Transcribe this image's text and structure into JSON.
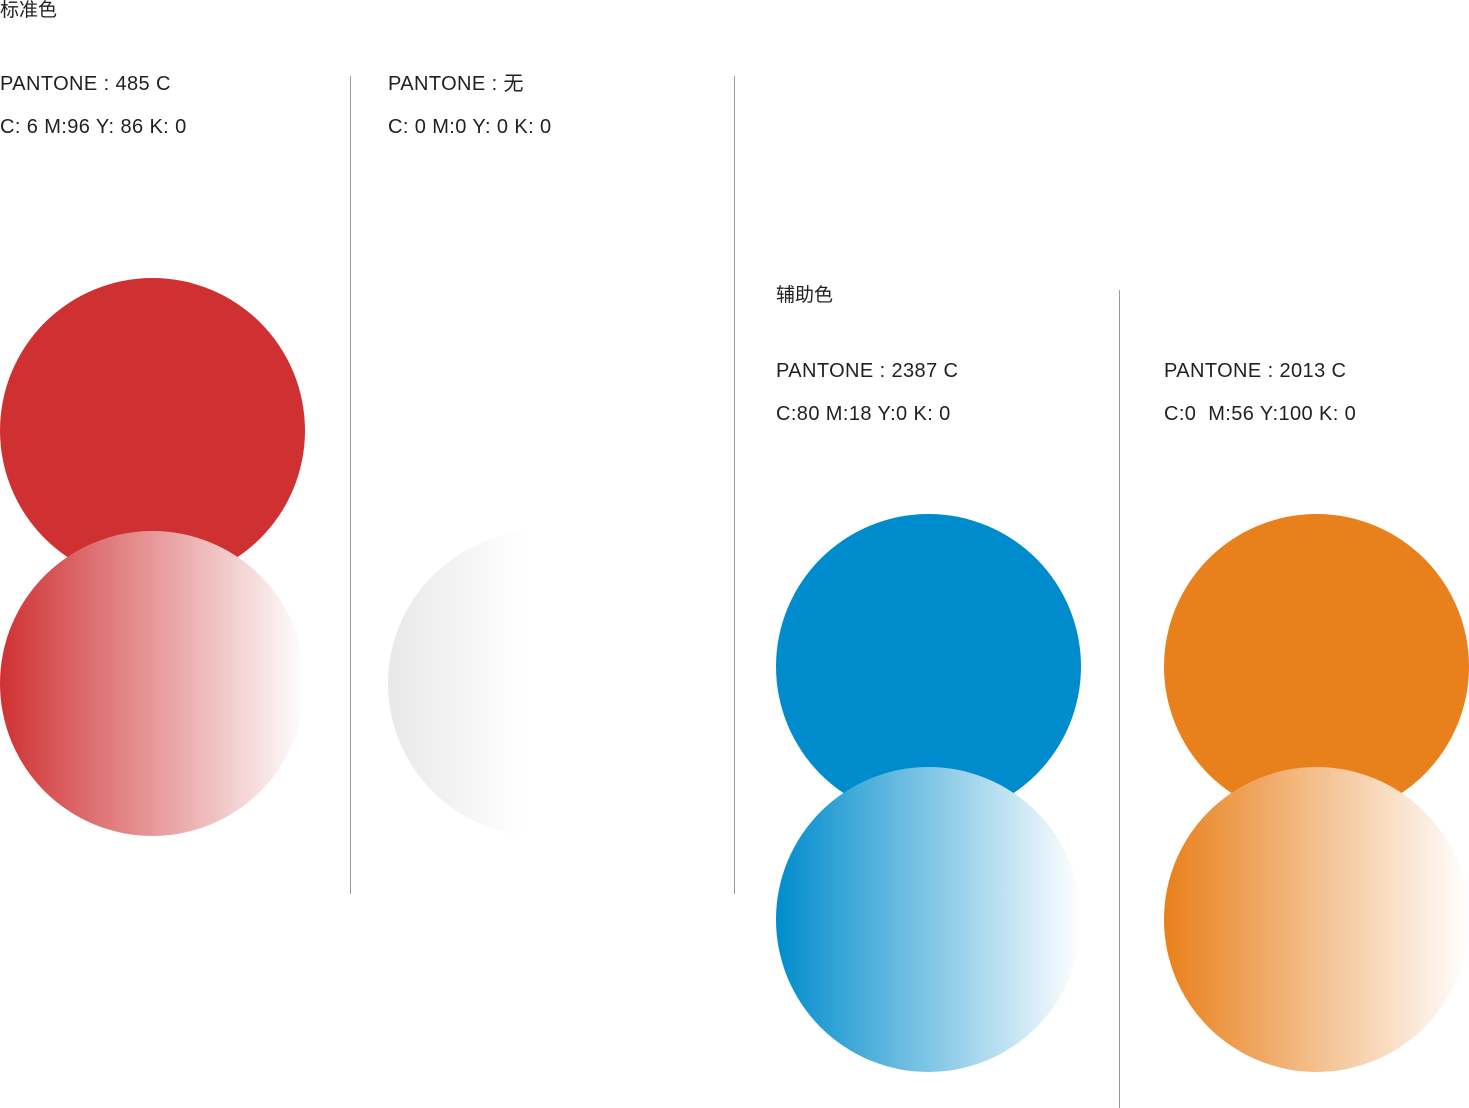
{
  "standard": {
    "title": "标准色",
    "swatches": [
      {
        "pantone": "PANTONE : 485 C",
        "cmyk": "C: 6 M:96 Y: 86 K: 0",
        "color": "#cf3133",
        "gradient_from": "#cf3133",
        "gradient_to": "#ffffff"
      },
      {
        "pantone": "PANTONE : 无",
        "cmyk": "C: 0 M:0 Y: 0 K: 0",
        "color": "#ffffff",
        "gradient_from": "#e8e8e8",
        "gradient_to": "#ffffff"
      }
    ]
  },
  "auxiliary": {
    "title": "辅助色",
    "swatches": [
      {
        "pantone": "PANTONE : 2387 C",
        "cmyk": "C:80 M:18 Y:0 K: 0",
        "color": "#008ccc",
        "gradient_from": "#008ccc",
        "gradient_to": "#ffffff"
      },
      {
        "pantone": "PANTONE : 2013 C",
        "cmyk": "C:0  M:56 Y:100 K: 0",
        "color": "#e8801b",
        "gradient_from": "#e8801b",
        "gradient_to": "#ffffff"
      }
    ]
  }
}
